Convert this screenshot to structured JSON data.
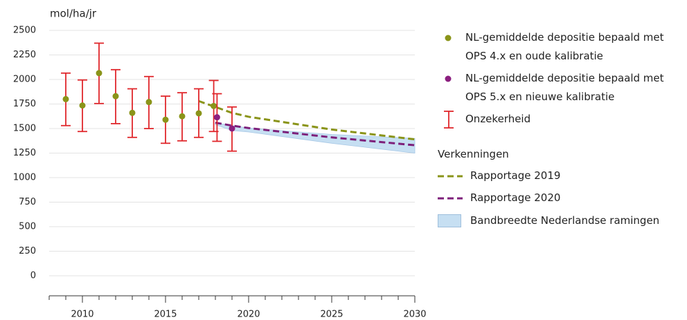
{
  "chart_data": {
    "type": "scatter",
    "y_label": "mol/ha/jr",
    "xlim": [
      2008,
      2030
    ],
    "xticks": [
      2010,
      2015,
      2020,
      2025,
      2030
    ],
    "ylim": [
      0,
      2500
    ],
    "yticks": [
      0,
      250,
      500,
      750,
      1000,
      1250,
      1500,
      1750,
      2000,
      2250,
      2500
    ],
    "grid": true,
    "series": [
      {
        "name": "NL-gemiddelde depositie bepaald met OPS 4.x en oude kalibratie",
        "color": "#8a9419",
        "x": [
          2009,
          2010,
          2011,
          2012,
          2013,
          2014,
          2015,
          2016,
          2017,
          2017.9
        ],
        "values": [
          1800,
          1735,
          2065,
          1830,
          1660,
          1770,
          1590,
          1625,
          1655,
          1730
        ],
        "low": [
          1530,
          1470,
          1755,
          1550,
          1410,
          1500,
          1350,
          1375,
          1410,
          1470
        ],
        "high": [
          2065,
          1995,
          2370,
          2100,
          1905,
          2030,
          1830,
          1865,
          1905,
          1990
        ]
      },
      {
        "name": "NL-gemiddelde depositie bepaald met OPS 5.x en nieuwe kalibratie",
        "color": "#8b1f7f",
        "x": [
          2018.1,
          2019
        ],
        "values": [
          1615,
          1500
        ],
        "low": [
          1370,
          1270
        ],
        "high": [
          1855,
          1720
        ]
      }
    ],
    "uncertainty": {
      "name": "Onzekerheid",
      "color": "#e0262b"
    },
    "projections": {
      "heading": "Verkenningen",
      "series": [
        {
          "name": "Rapportage 2019",
          "color": "#8a9419",
          "x": [
            2017,
            2018,
            2019,
            2020,
            2025,
            2030
          ],
          "values": [
            1780,
            1720,
            1660,
            1620,
            1490,
            1390
          ]
        },
        {
          "name": "Rapportage 2020",
          "color": "#7d1f7a",
          "x": [
            2018,
            2019,
            2020,
            2025,
            2030
          ],
          "values": [
            1560,
            1530,
            1505,
            1410,
            1330
          ]
        }
      ],
      "band": {
        "name": "Bandbreedte Nederlandse ramingen",
        "color": "#c6dff2",
        "x": [
          2018,
          2019,
          2020,
          2025,
          2030
        ],
        "low": [
          1540,
          1480,
          1465,
          1350,
          1250
        ],
        "high": [
          1560,
          1530,
          1505,
          1440,
          1400
        ]
      }
    }
  }
}
